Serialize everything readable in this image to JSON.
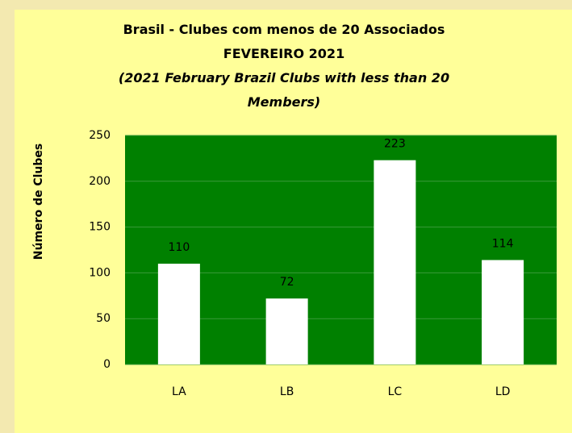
{
  "chart_data": {
    "type": "bar",
    "title": "Brasil - Clubes com menos de 20 Associados",
    "subtitle": "FEVEREIRO 2021",
    "annotation": "(2021 February Brazil Clubs with less than 20 Members)",
    "y_label": "Número de Clubes",
    "categories": [
      "LA",
      "LB",
      "LC",
      "LD"
    ],
    "values": [
      110,
      72,
      223,
      114
    ],
    "color": "#ffffff",
    "plot_background": "#008000",
    "ylim": [
      0,
      250
    ],
    "yticks": [
      0,
      50,
      100,
      150,
      200,
      250
    ],
    "grid": true
  }
}
